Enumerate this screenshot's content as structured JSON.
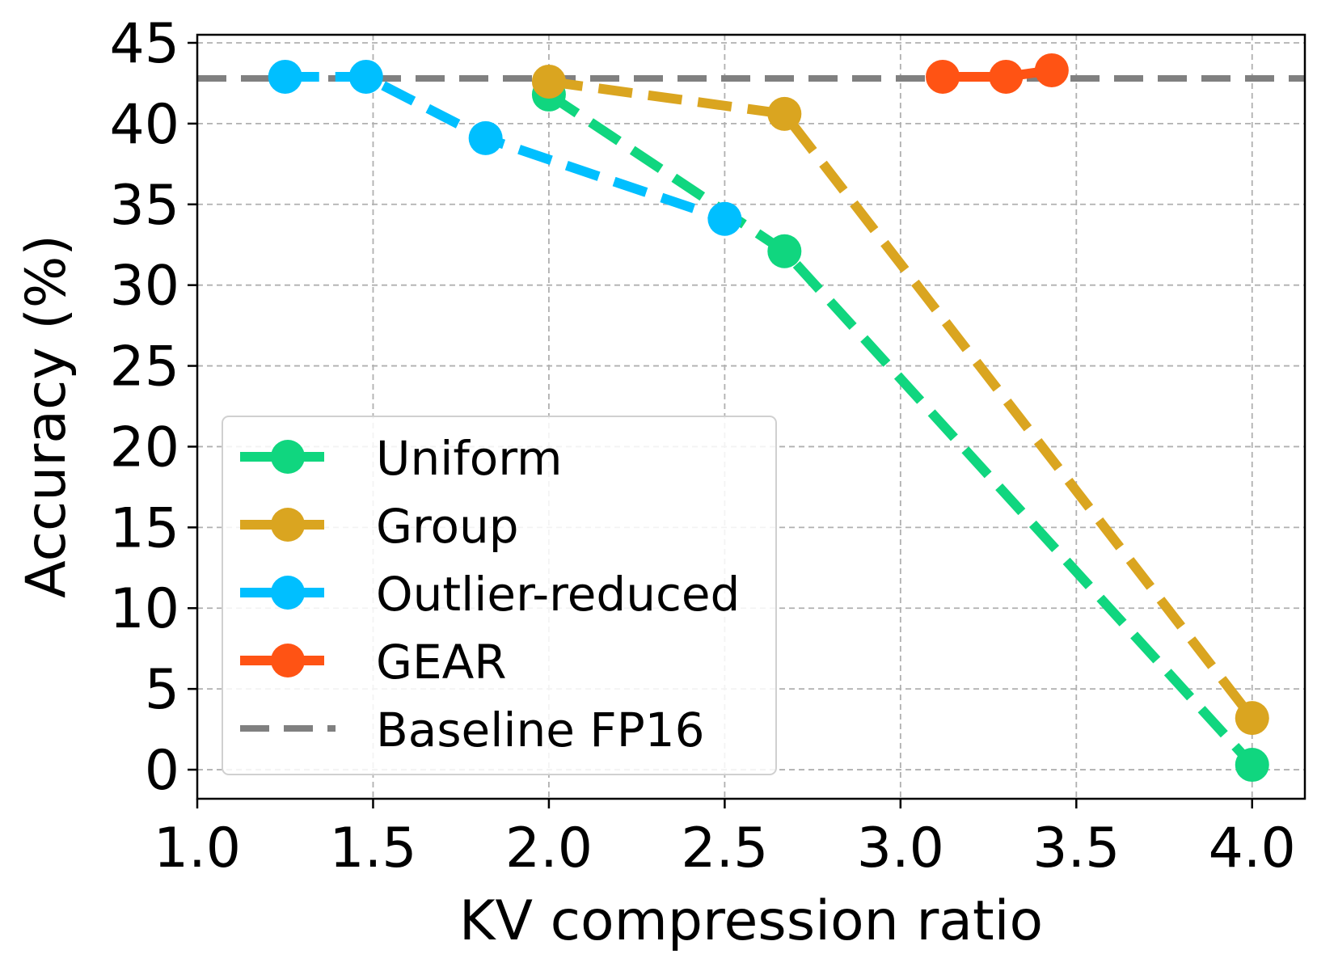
{
  "chart_data": {
    "type": "line",
    "title": "",
    "xlabel": "KV compression ratio",
    "ylabel": "Accuracy (%)",
    "xlim": [
      1.0,
      4.15
    ],
    "ylim": [
      -1.8,
      45.5
    ],
    "xticks": [
      1.0,
      1.5,
      2.0,
      2.5,
      3.0,
      3.5,
      4.0
    ],
    "yticks": [
      0,
      5,
      10,
      15,
      20,
      25,
      30,
      35,
      40,
      45
    ],
    "xtick_labels": [
      "1.0",
      "1.5",
      "2.0",
      "2.5",
      "3.0",
      "3.5",
      "4.0"
    ],
    "ytick_labels": [
      "0",
      "5",
      "10",
      "15",
      "20",
      "25",
      "30",
      "35",
      "40",
      "45"
    ],
    "grid": true,
    "legend_position": "lower-left",
    "series": [
      {
        "name": "Uniform",
        "color": "#10D67F",
        "style": "dashed",
        "marker": "circle",
        "x": [
          2.0,
          2.67,
          4.0
        ],
        "y": [
          41.8,
          32.1,
          0.3
        ]
      },
      {
        "name": "Group",
        "color": "#DAA520",
        "style": "dashed",
        "marker": "circle",
        "x": [
          2.0,
          2.67,
          4.0
        ],
        "y": [
          42.6,
          40.6,
          3.2
        ]
      },
      {
        "name": "Outlier-reduced",
        "color": "#00BFFF",
        "style": "dashed",
        "marker": "circle",
        "x": [
          1.25,
          1.48,
          1.82,
          2.5
        ],
        "y": [
          42.9,
          42.9,
          39.1,
          34.1
        ]
      },
      {
        "name": "GEAR",
        "color": "#FF5314",
        "style": "solid",
        "marker": "circle",
        "x": [
          3.12,
          3.3,
          3.43
        ],
        "y": [
          42.9,
          42.9,
          43.3
        ]
      }
    ],
    "baseline": {
      "name": "Baseline FP16",
      "color": "#808080",
      "style": "dashed",
      "y": 42.8
    }
  }
}
